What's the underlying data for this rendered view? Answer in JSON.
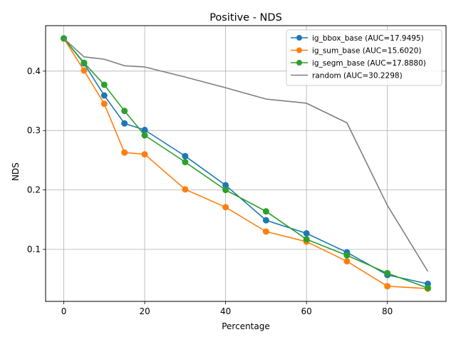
{
  "chart_data": {
    "type": "line",
    "title": "Positive - NDS",
    "xlabel": "Percentage",
    "ylabel": "NDS",
    "xlim": [
      -4.5,
      94.5
    ],
    "ylim": [
      0.0125,
      0.4765
    ],
    "x_ticks": [
      0,
      20,
      40,
      60,
      80
    ],
    "y_ticks": [
      0.1,
      0.2,
      0.3,
      0.4
    ],
    "x_tick_labels": [
      "0",
      "20",
      "40",
      "60",
      "80"
    ],
    "y_tick_labels": [
      "0.1",
      "0.2",
      "0.3",
      "0.4"
    ],
    "grid": true,
    "legend_position": "top-right",
    "series": [
      {
        "name": "ig_bbox_base (AUC=17.9495)",
        "color": "#1f77b4",
        "marker": true,
        "x": [
          0,
          5,
          10,
          15,
          20,
          30,
          40,
          50,
          60,
          70,
          80,
          90
        ],
        "y": [
          0.455,
          0.413,
          0.359,
          0.312,
          0.301,
          0.257,
          0.208,
          0.149,
          0.127,
          0.095,
          0.057,
          0.042
        ]
      },
      {
        "name": "ig_sum_base (AUC=15.6020)",
        "color": "#ff7f0e",
        "marker": true,
        "x": [
          0,
          5,
          10,
          15,
          20,
          30,
          40,
          50,
          60,
          70,
          80,
          90
        ],
        "y": [
          0.455,
          0.401,
          0.345,
          0.263,
          0.26,
          0.201,
          0.171,
          0.13,
          0.113,
          0.08,
          0.038,
          0.034
        ]
      },
      {
        "name": "ig_segm_base (AUC=17.8880)",
        "color": "#2ca02c",
        "marker": true,
        "x": [
          0,
          5,
          10,
          15,
          20,
          30,
          40,
          50,
          60,
          70,
          80,
          90
        ],
        "y": [
          0.455,
          0.414,
          0.377,
          0.333,
          0.292,
          0.247,
          0.2,
          0.164,
          0.117,
          0.09,
          0.06,
          0.035
        ]
      },
      {
        "name": "random (AUC=30.2298)",
        "color": "#7f7f7f",
        "marker": false,
        "x": [
          0,
          5,
          10,
          15,
          20,
          30,
          40,
          50,
          60,
          70,
          80,
          90
        ],
        "y": [
          0.455,
          0.424,
          0.42,
          0.409,
          0.407,
          0.39,
          0.372,
          0.353,
          0.346,
          0.313,
          0.174,
          0.063
        ]
      }
    ]
  }
}
